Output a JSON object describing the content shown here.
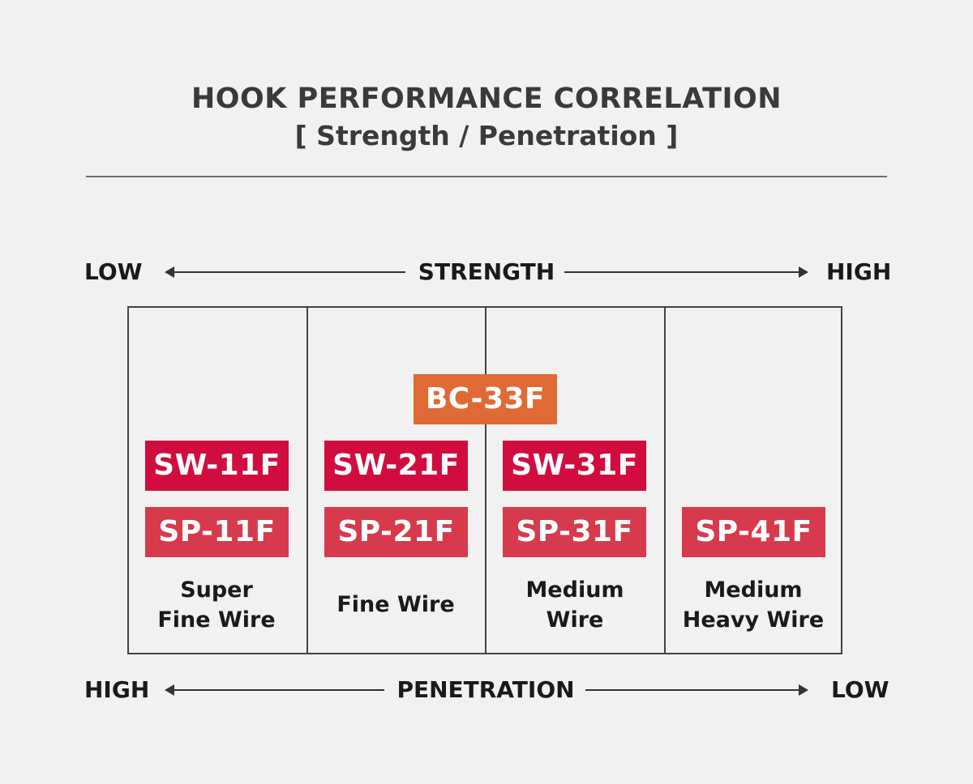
{
  "header": {
    "title": "HOOK PERFORMANCE CORRELATION",
    "subtitle": "[ Strength / Penetration ]"
  },
  "top_axis": {
    "left": "LOW",
    "name": "STRENGTH",
    "right": "HIGH"
  },
  "bottom_axis": {
    "left": "HIGH",
    "name": "PENETRATION",
    "right": "LOW"
  },
  "columns": [
    {
      "caption_line1": "Super",
      "caption_line2": "Fine Wire"
    },
    {
      "caption_line1": "Fine Wire",
      "caption_line2": ""
    },
    {
      "caption_line1": "Medium",
      "caption_line2": "Wire"
    },
    {
      "caption_line1": "Medium",
      "caption_line2": "Heavy Wire"
    }
  ],
  "tags": {
    "bc33f": "BC-33F",
    "sw11f": "SW-11F",
    "sw21f": "SW-21F",
    "sw31f": "SW-31F",
    "sp11f": "SP-11F",
    "sp21f": "SP-21F",
    "sp31f": "SP-31F",
    "sp41f": "SP-41F"
  },
  "colors": {
    "sw_tag": "#d10d3f",
    "sp_tag": "#d73a4c",
    "bc_tag": "#e06a35",
    "background": "#f1f1f1"
  }
}
